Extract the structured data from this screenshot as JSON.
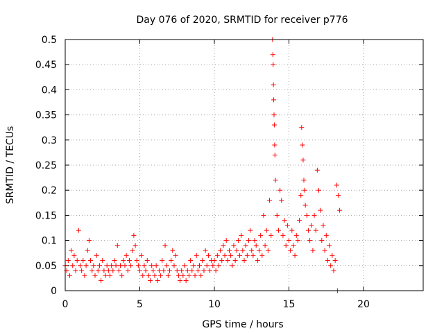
{
  "chart_data": {
    "type": "scatter",
    "title": "Day 076 of 2020, SRMTID for receiver p776",
    "xlabel": "GPS time / hours",
    "ylabel": "SRMTID / TECUs",
    "xlim": [
      0,
      24
    ],
    "ylim": [
      0,
      0.5
    ],
    "xticks": [
      0,
      5,
      10,
      15,
      20
    ],
    "xtick_labels": [
      "0",
      "5",
      "10",
      "15",
      "20"
    ],
    "yticks": [
      0,
      0.05,
      0.1,
      0.15,
      0.2,
      0.25,
      0.3,
      0.35,
      0.4,
      0.45,
      0.5
    ],
    "ytick_labels": [
      "0",
      "0.05",
      "0.1",
      "0.15",
      "0.2",
      "0.25",
      "0.3",
      "0.35",
      "0.4",
      "0.45",
      "0.5"
    ],
    "grid": true,
    "marker": "plus",
    "series": [
      {
        "name": "SRMTID",
        "color": "#ff0000",
        "points": [
          [
            0.0,
            0.05
          ],
          [
            0.1,
            0.04
          ],
          [
            0.2,
            0.06
          ],
          [
            0.3,
            0.03
          ],
          [
            0.4,
            0.08
          ],
          [
            0.5,
            0.05
          ],
          [
            0.6,
            0.07
          ],
          [
            0.7,
            0.04
          ],
          [
            0.8,
            0.06
          ],
          [
            0.9,
            0.12
          ],
          [
            1.0,
            0.05
          ],
          [
            1.1,
            0.04
          ],
          [
            1.2,
            0.06
          ],
          [
            1.3,
            0.03
          ],
          [
            1.4,
            0.05
          ],
          [
            1.5,
            0.08
          ],
          [
            1.6,
            0.1
          ],
          [
            1.7,
            0.06
          ],
          [
            1.8,
            0.04
          ],
          [
            1.9,
            0.05
          ],
          [
            2.0,
            0.03
          ],
          [
            2.1,
            0.07
          ],
          [
            2.2,
            0.04
          ],
          [
            2.3,
            0.05
          ],
          [
            2.4,
            0.02
          ],
          [
            2.5,
            0.06
          ],
          [
            2.6,
            0.04
          ],
          [
            2.7,
            0.03
          ],
          [
            2.8,
            0.05
          ],
          [
            2.9,
            0.04
          ],
          [
            3.0,
            0.03
          ],
          [
            3.1,
            0.05
          ],
          [
            3.2,
            0.04
          ],
          [
            3.3,
            0.06
          ],
          [
            3.4,
            0.05
          ],
          [
            3.5,
            0.09
          ],
          [
            3.6,
            0.04
          ],
          [
            3.7,
            0.05
          ],
          [
            3.8,
            0.03
          ],
          [
            3.9,
            0.06
          ],
          [
            4.0,
            0.05
          ],
          [
            4.1,
            0.07
          ],
          [
            4.2,
            0.04
          ],
          [
            4.3,
            0.06
          ],
          [
            4.4,
            0.05
          ],
          [
            4.5,
            0.08
          ],
          [
            4.6,
            0.11
          ],
          [
            4.7,
            0.09
          ],
          [
            4.8,
            0.06
          ],
          [
            4.9,
            0.05
          ],
          [
            5.0,
            0.04
          ],
          [
            5.1,
            0.07
          ],
          [
            5.2,
            0.03
          ],
          [
            5.3,
            0.05
          ],
          [
            5.4,
            0.04
          ],
          [
            5.5,
            0.06
          ],
          [
            5.6,
            0.03
          ],
          [
            5.7,
            0.02
          ],
          [
            5.8,
            0.05
          ],
          [
            5.9,
            0.04
          ],
          [
            6.0,
            0.03
          ],
          [
            6.1,
            0.05
          ],
          [
            6.2,
            0.02
          ],
          [
            6.3,
            0.04
          ],
          [
            6.4,
            0.03
          ],
          [
            6.5,
            0.06
          ],
          [
            6.6,
            0.04
          ],
          [
            6.7,
            0.09
          ],
          [
            6.8,
            0.05
          ],
          [
            6.9,
            0.03
          ],
          [
            7.0,
            0.04
          ],
          [
            7.1,
            0.06
          ],
          [
            7.2,
            0.08
          ],
          [
            7.3,
            0.05
          ],
          [
            7.4,
            0.07
          ],
          [
            7.5,
            0.04
          ],
          [
            7.6,
            0.03
          ],
          [
            7.7,
            0.02
          ],
          [
            7.8,
            0.04
          ],
          [
            7.9,
            0.03
          ],
          [
            8.0,
            0.05
          ],
          [
            8.1,
            0.02
          ],
          [
            8.2,
            0.04
          ],
          [
            8.3,
            0.03
          ],
          [
            8.4,
            0.06
          ],
          [
            8.5,
            0.04
          ],
          [
            8.6,
            0.05
          ],
          [
            8.7,
            0.03
          ],
          [
            8.8,
            0.07
          ],
          [
            8.9,
            0.04
          ],
          [
            9.0,
            0.05
          ],
          [
            9.1,
            0.03
          ],
          [
            9.2,
            0.06
          ],
          [
            9.3,
            0.04
          ],
          [
            9.4,
            0.08
          ],
          [
            9.5,
            0.05
          ],
          [
            9.6,
            0.07
          ],
          [
            9.7,
            0.04
          ],
          [
            9.8,
            0.06
          ],
          [
            9.9,
            0.05
          ],
          [
            10.0,
            0.06
          ],
          [
            10.1,
            0.04
          ],
          [
            10.2,
            0.07
          ],
          [
            10.3,
            0.05
          ],
          [
            10.4,
            0.08
          ],
          [
            10.5,
            0.06
          ],
          [
            10.6,
            0.09
          ],
          [
            10.7,
            0.07
          ],
          [
            10.8,
            0.1
          ],
          [
            10.9,
            0.06
          ],
          [
            11.0,
            0.08
          ],
          [
            11.1,
            0.07
          ],
          [
            11.2,
            0.05
          ],
          [
            11.3,
            0.09
          ],
          [
            11.4,
            0.06
          ],
          [
            11.5,
            0.08
          ],
          [
            11.6,
            0.1
          ],
          [
            11.7,
            0.07
          ],
          [
            11.8,
            0.11
          ],
          [
            11.9,
            0.08
          ],
          [
            12.0,
            0.06
          ],
          [
            12.1,
            0.09
          ],
          [
            12.2,
            0.07
          ],
          [
            12.3,
            0.1
          ],
          [
            12.4,
            0.12
          ],
          [
            12.5,
            0.08
          ],
          [
            12.6,
            0.07
          ],
          [
            12.7,
            0.1
          ],
          [
            12.8,
            0.09
          ],
          [
            12.9,
            0.06
          ],
          [
            13.0,
            0.08
          ],
          [
            13.1,
            0.11
          ],
          [
            13.2,
            0.07
          ],
          [
            13.3,
            0.15
          ],
          [
            13.4,
            0.09
          ],
          [
            13.5,
            0.12
          ],
          [
            13.6,
            0.08
          ],
          [
            13.7,
            0.18
          ],
          [
            13.8,
            0.11
          ],
          [
            13.9,
            0.5
          ],
          [
            13.92,
            0.47
          ],
          [
            13.94,
            0.45
          ],
          [
            13.96,
            0.41
          ],
          [
            13.98,
            0.38
          ],
          [
            14.0,
            0.35
          ],
          [
            14.02,
            0.33
          ],
          [
            14.04,
            0.29
          ],
          [
            14.06,
            0.27
          ],
          [
            14.1,
            0.22
          ],
          [
            14.2,
            0.15
          ],
          [
            14.3,
            0.12
          ],
          [
            14.4,
            0.2
          ],
          [
            14.5,
            0.18
          ],
          [
            14.6,
            0.11
          ],
          [
            14.7,
            0.14
          ],
          [
            14.8,
            0.09
          ],
          [
            14.9,
            0.13
          ],
          [
            15.0,
            0.1
          ],
          [
            15.1,
            0.08
          ],
          [
            15.2,
            0.12
          ],
          [
            15.3,
            0.09
          ],
          [
            15.4,
            0.07
          ],
          [
            15.5,
            0.11
          ],
          [
            15.6,
            0.1
          ],
          [
            15.7,
            0.14
          ],
          [
            15.8,
            0.19
          ],
          [
            15.85,
            0.325
          ],
          [
            15.9,
            0.29
          ],
          [
            15.95,
            0.26
          ],
          [
            16.0,
            0.22
          ],
          [
            16.05,
            0.2
          ],
          [
            16.1,
            0.17
          ],
          [
            16.2,
            0.15
          ],
          [
            16.3,
            0.12
          ],
          [
            16.4,
            0.1
          ],
          [
            16.5,
            0.13
          ],
          [
            16.6,
            0.08
          ],
          [
            16.7,
            0.15
          ],
          [
            16.8,
            0.12
          ],
          [
            16.9,
            0.24
          ],
          [
            17.0,
            0.2
          ],
          [
            17.1,
            0.16
          ],
          [
            17.2,
            0.1
          ],
          [
            17.3,
            0.13
          ],
          [
            17.4,
            0.08
          ],
          [
            17.5,
            0.11
          ],
          [
            17.6,
            0.06
          ],
          [
            17.7,
            0.09
          ],
          [
            17.8,
            0.05
          ],
          [
            17.9,
            0.07
          ],
          [
            18.0,
            0.04
          ],
          [
            18.1,
            0.06
          ],
          [
            18.2,
            0.21
          ],
          [
            18.25,
            0.0
          ],
          [
            18.3,
            0.19
          ],
          [
            18.4,
            0.16
          ]
        ]
      }
    ]
  }
}
